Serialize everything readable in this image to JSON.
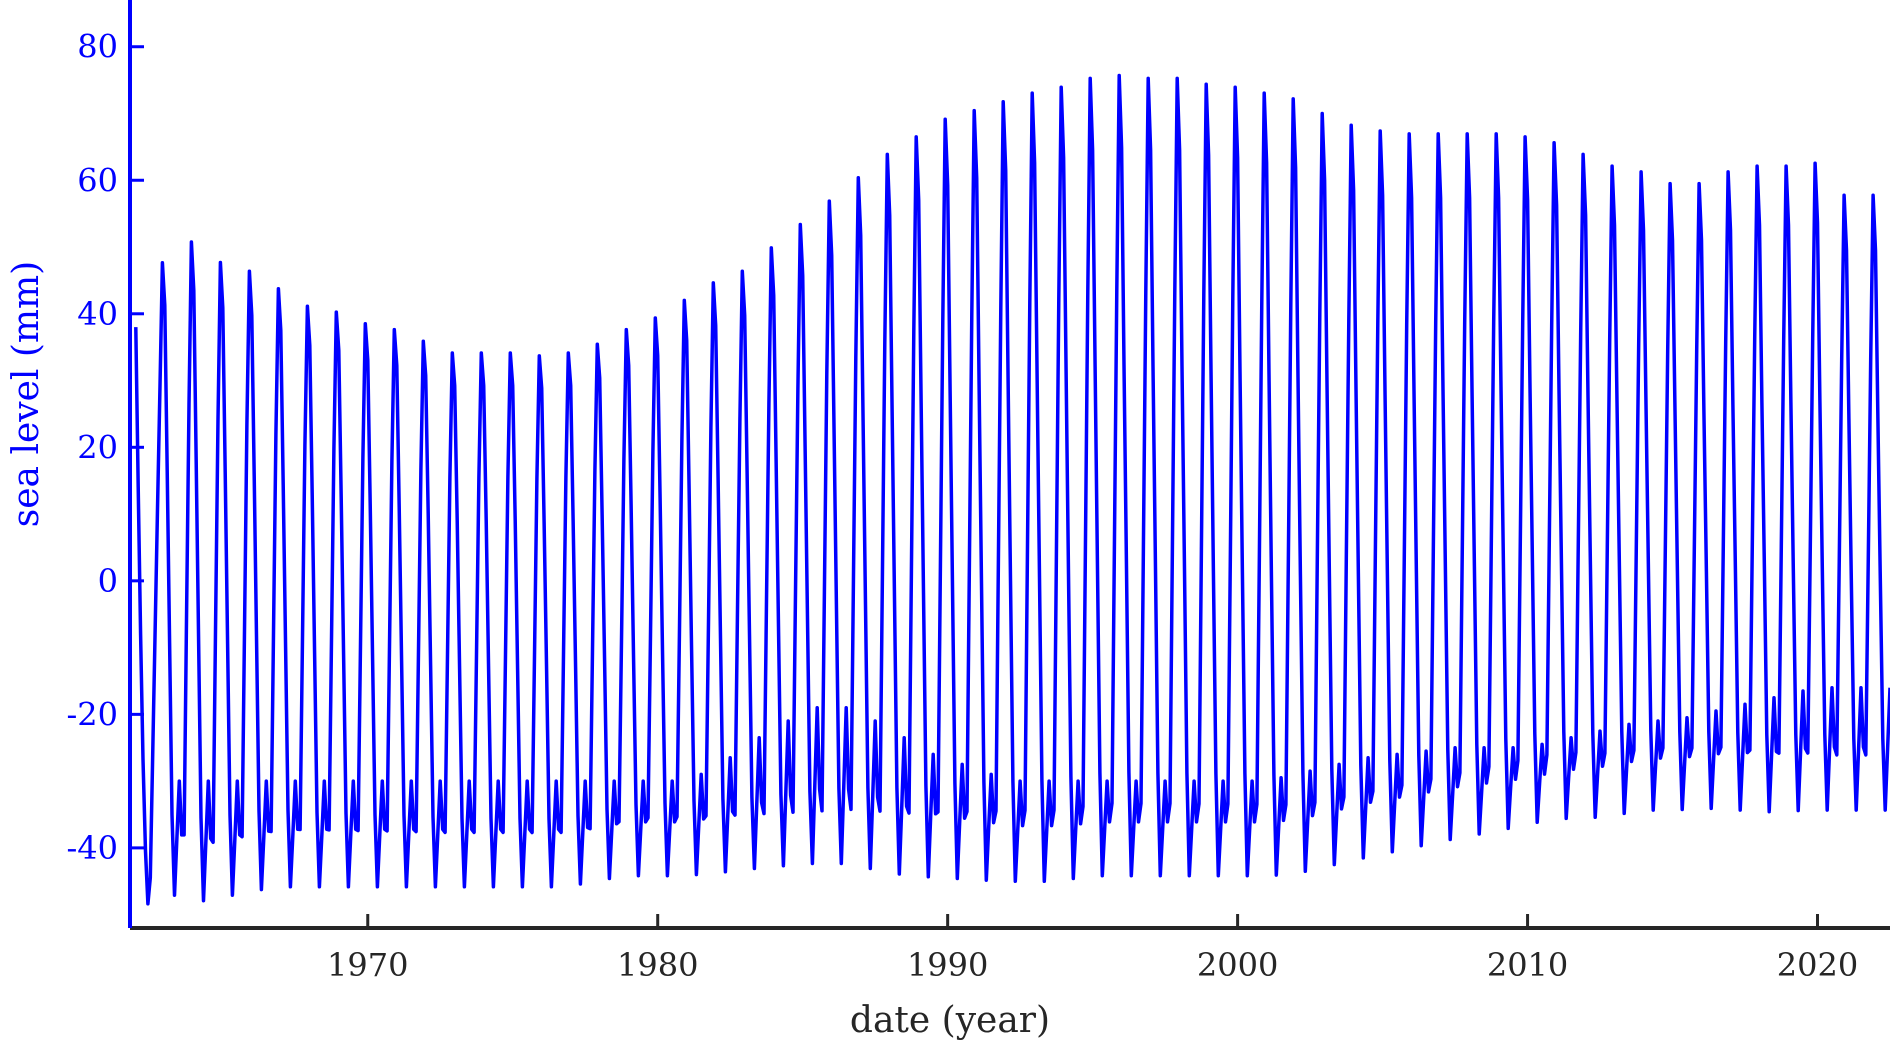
{
  "chart_data": {
    "type": "line",
    "xlabel": "date (year)",
    "ylabel": "sea level (mm)",
    "xlim": [
      1961.8,
      2022.5
    ],
    "ylim": [
      -52,
      87
    ],
    "xticks": [
      1970,
      1980,
      1990,
      2000,
      2010,
      2020
    ],
    "yticks": [
      -40,
      -20,
      0,
      20,
      40,
      60,
      80
    ],
    "xtick_labels": [
      "1970",
      "1980",
      "1990",
      "2000",
      "2010",
      "2020"
    ],
    "ytick_labels": [
      "-40",
      "-20",
      "0",
      "20",
      "40",
      "60",
      "80"
    ],
    "grid": false,
    "colors": {
      "series": "#0000ff",
      "axis": "#262626",
      "ylabel": "#0000ff",
      "xlabel": "#262626"
    },
    "series": [
      {
        "sampling": "monthly",
        "start": 1962.0,
        "peak_date": [
          1962.95,
          1963.95,
          1964.95,
          1965.95,
          1966.95,
          1967.95,
          1968.95,
          1969.95,
          1970.95,
          1971.95,
          1972.95,
          1973.95,
          1974.95,
          1975.95,
          1976.95,
          1977.95,
          1978.95,
          1979.95,
          1980.95,
          1981.95,
          1982.95,
          1983.95,
          1984.95,
          1985.95,
          1986.95,
          1987.95,
          1988.95,
          1989.95,
          1990.95,
          1991.95,
          1992.95,
          1993.95,
          1994.95,
          1995.95,
          1996.95,
          1997.95,
          1998.95,
          1999.95,
          2000.95,
          2001.95,
          2002.95,
          2003.95,
          2004.95,
          2005.95,
          2006.95,
          2007.95,
          2008.95,
          2009.95,
          2010.95,
          2011.95,
          2012.95,
          2013.95,
          2014.95,
          2015.95,
          2016.95,
          2017.95,
          2018.95,
          2019.95,
          2020.95,
          2021.95
        ],
        "peak": [
          55,
          58,
          54.5,
          53,
          50,
          47,
          46,
          44,
          43,
          41,
          39,
          39,
          39,
          38.5,
          39,
          40.5,
          43,
          45,
          48,
          51,
          53,
          57,
          61,
          65,
          69,
          73,
          76,
          79,
          80.5,
          82,
          83.5,
          84.5,
          86,
          86.5,
          86,
          86,
          85,
          84.5,
          83.5,
          82.5,
          80,
          78,
          77,
          76.5,
          76.5,
          76.5,
          76.5,
          76,
          75,
          73,
          71,
          70,
          68,
          68,
          70,
          71,
          71,
          71.5,
          66,
          66
        ],
        "trough": [
          -49,
          -52,
          -51,
          -50,
          -49,
          -49,
          -49,
          -49,
          -49,
          -49,
          -49,
          -49,
          -49,
          -49,
          -49,
          -48,
          -47,
          -47,
          -47,
          -47,
          -47,
          -47,
          -47,
          -47,
          -47,
          -48,
          -48,
          -48,
          -48,
          -48,
          -48,
          -48,
          -47,
          -47,
          -47,
          -47,
          -47,
          -47,
          -47,
          -47,
          -46,
          -45,
          -44,
          -43,
          -42,
          -41,
          -40,
          -39,
          -38,
          -38,
          -38,
          -37,
          -37,
          -37,
          -37,
          -38,
          -38,
          -38,
          -38,
          -38
        ],
        "shoulder": [
          -30,
          -30,
          -30,
          -30,
          -30,
          -30,
          -30,
          -30,
          -30,
          -30,
          -30,
          -30,
          -30,
          -30,
          -30,
          -30,
          -30,
          -30,
          -30,
          -28,
          -25,
          -22,
          -20,
          -18,
          -20,
          -22,
          -25,
          -27,
          -28,
          -30,
          -30,
          -30,
          -30,
          -30,
          -30,
          -30,
          -30,
          -30,
          -30,
          -29,
          -28,
          -27,
          -26,
          -26,
          -25,
          -25,
          -25,
          -25,
          -24,
          -23,
          -22,
          -21,
          -21,
          -20,
          -19,
          -18,
          -17,
          -16,
          -16,
          -16
        ]
      }
    ]
  }
}
